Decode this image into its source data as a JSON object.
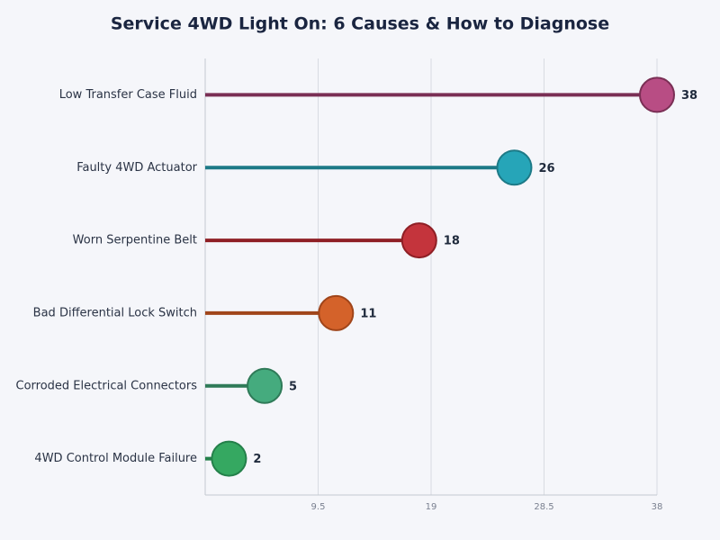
{
  "chart_data": {
    "type": "lollipop",
    "title": "Service 4WD Light On: 6 Causes & How to Diagnose",
    "categories": [
      "Low Transfer Case Fluid",
      "Faulty 4WD Actuator",
      "Worn Serpentine Belt",
      "Bad Differential Lock Switch",
      "Corroded Electrical Connectors",
      "4WD Control Module Failure"
    ],
    "values": [
      38,
      26,
      18,
      11,
      5,
      2
    ],
    "colors": [
      "#b84d84",
      "#26a5b8",
      "#c4343c",
      "#d4622a",
      "#45ab7e",
      "#35a861"
    ],
    "line_colors": [
      "#7a2f55",
      "#1d7a87",
      "#8f1f25",
      "#a0451a",
      "#2f7a58",
      "#24804a"
    ],
    "xlim": [
      0,
      38
    ],
    "xticks": [
      9.5,
      19,
      28.5,
      38
    ],
    "grid": true
  }
}
